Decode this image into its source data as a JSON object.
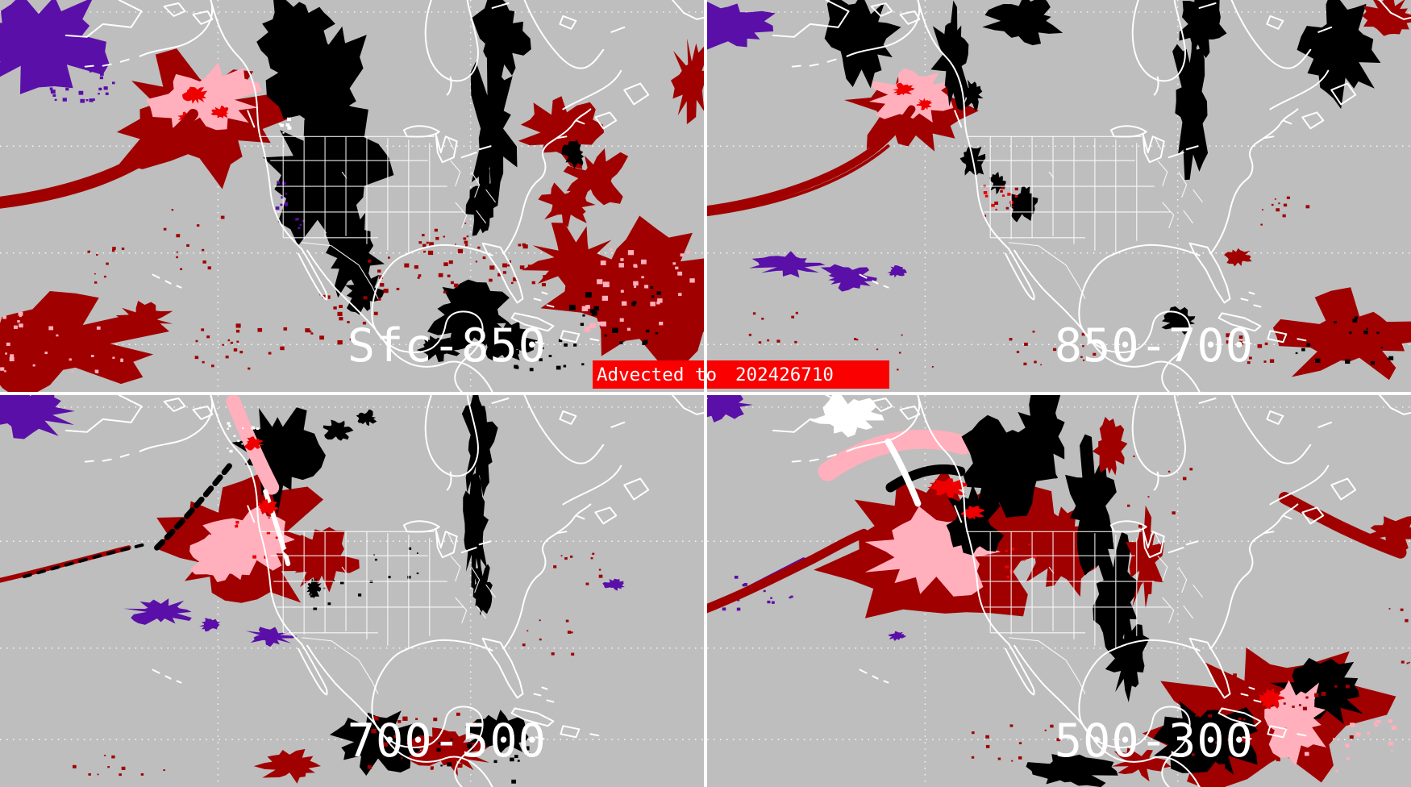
{
  "panels": [
    {
      "id": "sfc-850",
      "label": "Sfc-850"
    },
    {
      "id": "850-700",
      "label": "850-700"
    },
    {
      "id": "700-500",
      "label": "700-500"
    },
    {
      "id": "500-300",
      "label": "500-300"
    }
  ],
  "banner": {
    "prefix": "Advected to",
    "timestamp": "202426710"
  },
  "palette": {
    "background": "#BEBEBE",
    "map_lines": "#FFFFFF",
    "moisture_black": "#000000",
    "moisture_dark_red": "#A00000",
    "moisture_red": "#EE0000",
    "moisture_pink": "#FFB0BC",
    "moisture_purple": "#5A0FA8",
    "banner_bg": "#FA0000",
    "banner_fg": "#FFFFFF",
    "divider": "#FFFFFF",
    "label_fg": "#FFFFFF"
  }
}
